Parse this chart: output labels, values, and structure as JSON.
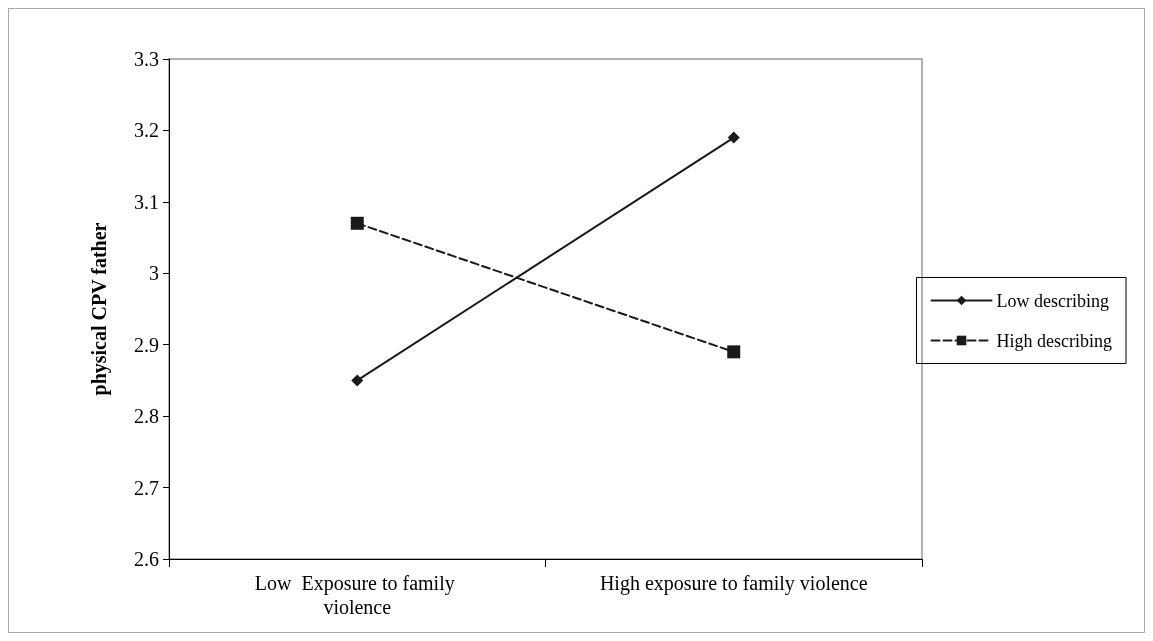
{
  "chart_data": {
    "type": "line",
    "ylabel": "physical CPV father",
    "categories": [
      "Low  Exposure to family violence",
      "High exposure to family violence"
    ],
    "series": [
      {
        "name": "Low describing",
        "color": "#1a1a1a",
        "values": [
          2.85,
          3.19
        ],
        "marker": "diamond",
        "line_style": "solid"
      },
      {
        "name": "High describing",
        "color": "#1a1a1a",
        "values": [
          3.07,
          2.89
        ],
        "marker": "square",
        "line_style": "dashed"
      }
    ],
    "ylim": [
      2.6,
      3.3
    ],
    "yticks": [
      2.6,
      2.7,
      2.8,
      2.9,
      3,
      3.1,
      3.2,
      3.3
    ],
    "grid": false,
    "legend": "right"
  }
}
